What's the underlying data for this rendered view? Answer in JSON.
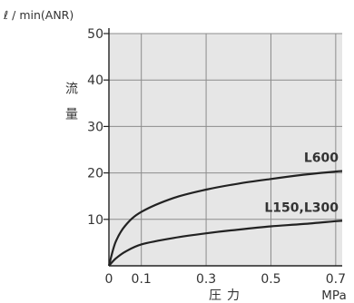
{
  "chart_data": {
    "type": "line",
    "y_unit_label": "ℓ / min(ANR)",
    "ylabel": "流量",
    "xlabel": "圧力",
    "x_unit_label": "MPa",
    "xlim": [
      0,
      0.72
    ],
    "ylim": [
      0,
      50
    ],
    "x_ticks": [
      "0",
      "0.1",
      "0.3",
      "0.5",
      "0.7"
    ],
    "x_tick_values": [
      0,
      0.1,
      0.3,
      0.5,
      0.7
    ],
    "y_ticks": [
      "10",
      "20",
      "30",
      "40",
      "50"
    ],
    "y_tick_values": [
      10,
      20,
      30,
      40,
      50
    ],
    "grid": true,
    "colors": {
      "plot_bg": "#e6e6e6",
      "grid": "#8c8c8c",
      "line": "#222222"
    },
    "series": [
      {
        "name": "L600",
        "x": [
          0,
          0.02,
          0.05,
          0.1,
          0.2,
          0.3,
          0.4,
          0.5,
          0.6,
          0.7,
          0.72
        ],
        "y": [
          0,
          5,
          8.6,
          11.6,
          14.6,
          16.4,
          17.7,
          18.7,
          19.6,
          20.3,
          20.4
        ]
      },
      {
        "name": "L150,L300",
        "x": [
          0,
          0.02,
          0.05,
          0.1,
          0.2,
          0.3,
          0.4,
          0.5,
          0.6,
          0.7,
          0.72
        ],
        "y": [
          0,
          1.5,
          3,
          4.6,
          6,
          7,
          7.8,
          8.5,
          9,
          9.6,
          9.7
        ]
      }
    ]
  }
}
